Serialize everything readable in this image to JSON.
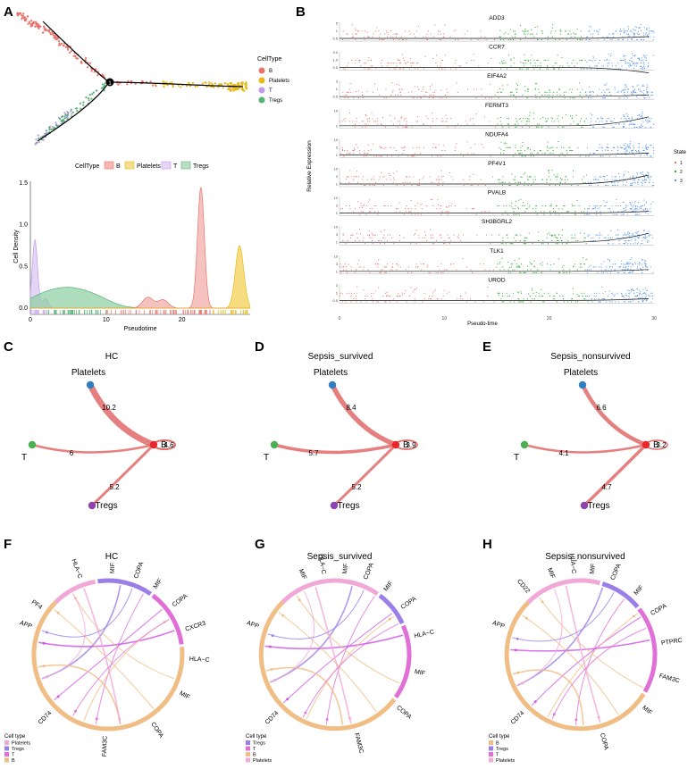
{
  "panels": {
    "A": "A",
    "B": "B",
    "C": "C",
    "D": "D",
    "E": "E",
    "F": "F",
    "G": "G",
    "H": "H"
  },
  "colors": {
    "B": "#e8736c",
    "Platelets": "#e8b818",
    "T": "#c39be8",
    "Tregs": "#55b377",
    "state1": "#e8736c",
    "state2": "#2ea830",
    "state3": "#5595e8",
    "edge": "#e26a6a",
    "nodeB": "#e8272a",
    "nodePlatelets": "#2f7fc1",
    "nodeT": "#4caf50",
    "nodeTregs": "#8e44ad",
    "chordB": "#f0bd85",
    "chordPlatelets": "#f2a8d6",
    "chordTregs": "#9b7fe8",
    "chordT": "#e070d8",
    "chordMagenta": "#d050e8"
  },
  "trajectory": {
    "branch_point_label": "1",
    "legend_title": "CellType",
    "legend_items": [
      "B",
      "Platelets",
      "T",
      "Tregs"
    ]
  },
  "density_legend": {
    "title": "CellType",
    "items": [
      "B",
      "Platelets",
      "T",
      "Tregs"
    ]
  },
  "chart_data": [
    {
      "type": "area",
      "panel": "A",
      "title": "",
      "xlabel": "Pseudotime",
      "ylabel": "Cell Density",
      "xlim": [
        0,
        29
      ],
      "ylim": [
        0,
        1.5
      ],
      "xticks": [
        "0",
        "10",
        "20"
      ],
      "yticks": [
        "0.0",
        "0.5",
        "1.0",
        "1.5"
      ],
      "series": [
        {
          "name": "T",
          "peaks": [
            {
              "x": 0.6,
              "y": 0.82
            },
            {
              "x": 2.0,
              "y": 0.12
            }
          ]
        },
        {
          "name": "Tregs",
          "peaks": [
            {
              "x": 1.5,
              "y": 0.13
            },
            {
              "x": 5.0,
              "y": 0.18
            },
            {
              "x": 8.5,
              "y": 0.12
            }
          ]
        },
        {
          "name": "B",
          "peaks": [
            {
              "x": 15.5,
              "y": 0.13
            },
            {
              "x": 17.5,
              "y": 0.1
            },
            {
              "x": 22.5,
              "y": 1.45
            }
          ]
        },
        {
          "name": "Platelets",
          "peaks": [
            {
              "x": 27.6,
              "y": 0.75
            }
          ]
        }
      ]
    },
    {
      "type": "scatter",
      "panel": "B",
      "xlabel": "Pseudo-time",
      "ylabel": "Relative Expression",
      "xlim": [
        0,
        30
      ],
      "xticks": [
        "0",
        "10",
        "20",
        "30"
      ],
      "legend_title": "State",
      "legend_items": [
        "1",
        "2",
        "3"
      ],
      "genes": [
        {
          "name": "ADD3",
          "yticks": [
            "0.5",
            "1",
            "5"
          ]
        },
        {
          "name": "CCR7",
          "yticks": [
            "0.5",
            "1.0",
            "3.0"
          ]
        },
        {
          "name": "EIF4A2",
          "yticks": [
            "0.5",
            "1",
            "3"
          ]
        },
        {
          "name": "FERMT3",
          "yticks": [
            "1",
            "10"
          ]
        },
        {
          "name": "NDUFA4",
          "yticks": [
            "1",
            "3",
            "10"
          ]
        },
        {
          "name": "PF4V1",
          "yticks": [
            "1",
            "3",
            "10"
          ]
        },
        {
          "name": "PVALB",
          "yticks": [
            "1",
            "3",
            "10"
          ]
        },
        {
          "name": "SH3BGRL2",
          "yticks": [
            "1",
            "3",
            "10"
          ]
        },
        {
          "name": "TLK1",
          "yticks": [
            "1",
            "3",
            "10"
          ]
        },
        {
          "name": "UROD",
          "yticks": [
            "0.5",
            "1",
            "3"
          ]
        }
      ]
    }
  ],
  "networks": [
    {
      "title": "HC",
      "nodes": {
        "Platelets": "Platelets",
        "T": "T",
        "Tregs": "Tregs",
        "B": "B"
      },
      "edges": {
        "platelets_b": "10.2",
        "t_b": "6",
        "tregs_b": "5.2",
        "b_self": "4.6"
      }
    },
    {
      "title": "Sepsis_survived",
      "nodes": {
        "Platelets": "Platelets",
        "T": "T",
        "Tregs": "Tregs",
        "B": "B"
      },
      "edges": {
        "platelets_b": "8.4",
        "t_b": "5.7",
        "tregs_b": "5.2",
        "b_self": "3.9"
      }
    },
    {
      "title": "Sepsis_nonsurvived",
      "nodes": {
        "Platelets": "Platelets",
        "T": "T",
        "Tregs": "Tregs",
        "B": "B"
      },
      "edges": {
        "platelets_b": "6.6",
        "t_b": "4.1",
        "tregs_b": "4.7",
        "b_self": "3.2"
      }
    }
  ],
  "chords": [
    {
      "title": "HC",
      "labels": [
        "PF4",
        "HLA−C",
        "MIF",
        "COPA",
        "MIF",
        "COPA",
        "CXCR3",
        "HLA−C",
        "MIF",
        "COPA",
        "FAM3C",
        "CD74",
        "APP"
      ],
      "legend_title": "Cell type",
      "legend_items": [
        "Platelets",
        "Tregs",
        "T",
        "B"
      ]
    },
    {
      "title": "Sepsis_survived",
      "labels": [
        "MIF",
        "HLA−C",
        "MIF",
        "COPA",
        "MIF",
        "COPA",
        "HLA−C",
        "MIF",
        "COPA",
        "FAM3C",
        "CD74",
        "APP"
      ],
      "legend_title": "Cell type",
      "legend_items": [
        "Tregs",
        "T",
        "B",
        "Platelets"
      ]
    },
    {
      "title": "Sepsis_nonsurvived",
      "labels": [
        "MIF",
        "HLA−C",
        "MIF",
        "COPA",
        "MIF",
        "COPA",
        "PTPRC",
        "FAM3C",
        "MIF",
        "COPA",
        "CD74",
        "APP",
        "CD22"
      ],
      "legend_title": "Cell type",
      "legend_items": [
        "B",
        "Tregs",
        "T",
        "Platelets"
      ]
    }
  ]
}
